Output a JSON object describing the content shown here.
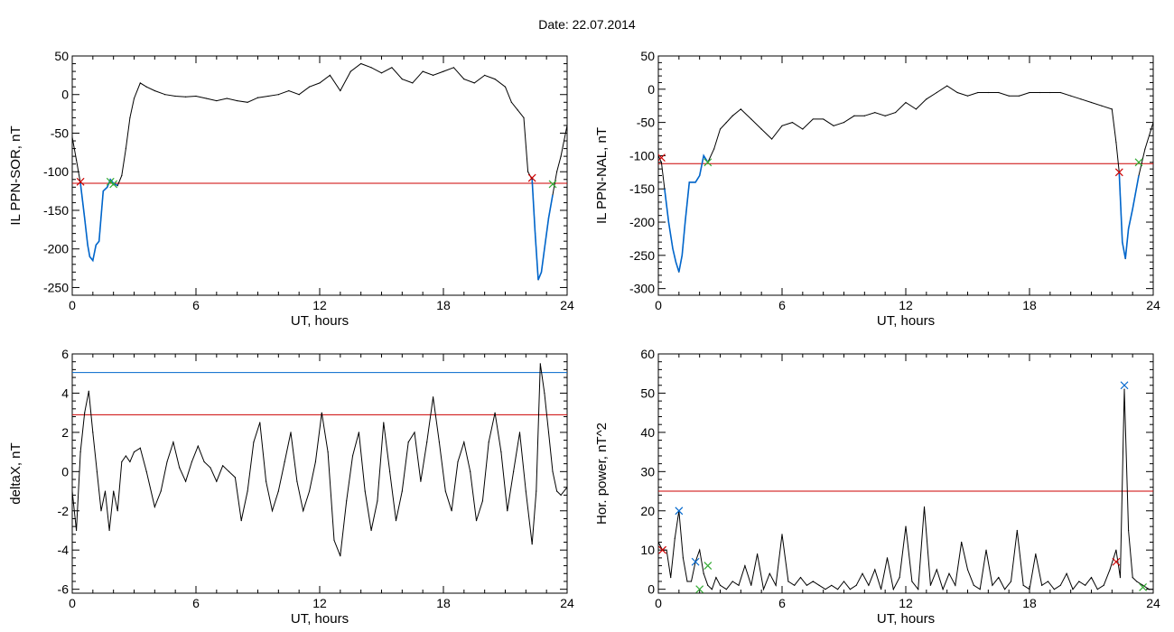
{
  "figure": {
    "title": "Date:  22.07.2014",
    "colors": {
      "data": "#000000",
      "threshold": "#cc0000",
      "highlight": "#0066cc",
      "marker_red": "#cc0000",
      "marker_green": "#33aa33",
      "marker_blue": "#0066cc"
    }
  },
  "chart_data": [
    {
      "type": "line",
      "ylabel": "IL PPN-SOR, nT",
      "xlabel": "UT, hours",
      "xlim": [
        0,
        24
      ],
      "ylim": [
        -260,
        50
      ],
      "xticks": [
        0,
        6,
        12,
        18,
        24
      ],
      "yticks": [
        -250,
        -200,
        -150,
        -100,
        -50,
        0,
        50
      ],
      "series": [
        {
          "x": [
            0,
            0.2,
            0.4,
            0.6,
            0.75,
            0.85,
            1.0,
            1.15,
            1.3,
            1.5,
            1.7,
            1.85,
            2.0,
            2.2,
            2.4,
            2.6,
            2.8,
            3.0,
            3.3,
            3.6,
            4.0,
            4.5,
            5.0,
            5.5,
            6.0,
            6.5,
            7.0,
            7.5,
            8.0,
            8.5,
            9.0,
            9.5,
            10.0,
            10.5,
            11.0,
            11.5,
            12.0,
            12.5,
            13.0,
            13.5,
            14.0,
            14.5,
            15.0,
            15.5,
            16.0,
            16.5,
            17.0,
            17.5,
            18.0,
            18.5,
            19.0,
            19.5,
            20.0,
            20.5,
            21.0,
            21.3,
            21.6,
            21.9,
            22.1,
            22.3,
            22.45,
            22.6,
            22.75,
            22.9,
            23.1,
            23.3,
            23.5,
            23.7,
            24.0
          ],
          "y": [
            -55,
            -85,
            -115,
            -160,
            -195,
            -210,
            -215,
            -195,
            -190,
            -125,
            -120,
            -110,
            -115,
            -118,
            -105,
            -70,
            -30,
            -5,
            15,
            10,
            5,
            0,
            -2,
            -3,
            -2,
            -5,
            -8,
            -5,
            -8,
            -10,
            -4,
            -2,
            0,
            5,
            0,
            10,
            15,
            25,
            5,
            30,
            40,
            35,
            28,
            35,
            20,
            15,
            30,
            25,
            30,
            35,
            20,
            15,
            25,
            20,
            10,
            -10,
            -20,
            -30,
            -100,
            -110,
            -180,
            -240,
            -230,
            -200,
            -160,
            -130,
            -100,
            -80,
            -40
          ]
        }
      ],
      "threshold_red": -115,
      "highlight_segments": [
        [
          0.4,
          2.2
        ],
        [
          22.3,
          23.3
        ]
      ],
      "markers": [
        {
          "x": 0.4,
          "y": -113,
          "color": "red"
        },
        {
          "x": 1.85,
          "y": -113,
          "color": "green"
        },
        {
          "x": 2.0,
          "y": -116,
          "color": "green"
        },
        {
          "x": 22.3,
          "y": -108,
          "color": "red"
        },
        {
          "x": 23.3,
          "y": -116,
          "color": "green"
        }
      ]
    },
    {
      "type": "line",
      "ylabel": "IL PPN-NAL, nT",
      "xlabel": "UT, hours",
      "xlim": [
        0,
        24
      ],
      "ylim": [
        -310,
        50
      ],
      "xticks": [
        0,
        6,
        12,
        18,
        24
      ],
      "yticks": [
        -300,
        -250,
        -200,
        -150,
        -100,
        -50,
        0,
        50
      ],
      "series": [
        {
          "x": [
            0,
            0.15,
            0.3,
            0.5,
            0.7,
            0.85,
            1.0,
            1.15,
            1.3,
            1.5,
            1.8,
            2.0,
            2.2,
            2.4,
            2.7,
            3.0,
            3.3,
            3.6,
            4.0,
            4.5,
            5.0,
            5.5,
            6.0,
            6.5,
            7.0,
            7.5,
            8.0,
            8.5,
            9.0,
            9.5,
            10.0,
            10.5,
            11.0,
            11.5,
            12.0,
            12.5,
            13.0,
            13.5,
            14.0,
            14.5,
            15.0,
            15.5,
            16.0,
            16.5,
            17.0,
            17.5,
            18.0,
            18.5,
            19.0,
            19.5,
            20.0,
            20.5,
            21.0,
            21.5,
            22.0,
            22.2,
            22.35,
            22.5,
            22.65,
            22.8,
            23.0,
            23.3,
            23.6,
            24.0
          ],
          "y": [
            -100,
            -110,
            -150,
            -200,
            -240,
            -260,
            -275,
            -250,
            -200,
            -140,
            -140,
            -130,
            -100,
            -110,
            -90,
            -60,
            -50,
            -40,
            -30,
            -45,
            -60,
            -75,
            -55,
            -50,
            -60,
            -45,
            -45,
            -55,
            -50,
            -40,
            -40,
            -35,
            -40,
            -35,
            -20,
            -30,
            -15,
            -5,
            5,
            -5,
            -10,
            -5,
            -5,
            -5,
            -10,
            -10,
            -5,
            -5,
            -5,
            -5,
            -10,
            -15,
            -20,
            -25,
            -30,
            -80,
            -125,
            -230,
            -255,
            -210,
            -180,
            -130,
            -90,
            -50
          ]
        }
      ],
      "threshold_red": -112,
      "highlight_segments": [
        [
          0.3,
          2.4
        ],
        [
          22.35,
          23.3
        ]
      ],
      "markers": [
        {
          "x": 0.15,
          "y": -103,
          "color": "red"
        },
        {
          "x": 2.4,
          "y": -110,
          "color": "green"
        },
        {
          "x": 22.35,
          "y": -125,
          "color": "red"
        },
        {
          "x": 23.3,
          "y": -110,
          "color": "green"
        }
      ]
    },
    {
      "type": "line",
      "ylabel": "deltaX, nT",
      "xlabel": "UT, hours",
      "xlim": [
        0,
        24
      ],
      "ylim": [
        -6.2,
        6
      ],
      "xticks": [
        0,
        6,
        12,
        18,
        24
      ],
      "yticks": [
        -6,
        -4,
        -2,
        0,
        2,
        4,
        6
      ],
      "series": [
        {
          "x": [
            0,
            0.2,
            0.4,
            0.6,
            0.8,
            1.0,
            1.2,
            1.4,
            1.6,
            1.8,
            2.0,
            2.2,
            2.4,
            2.6,
            2.8,
            3.0,
            3.3,
            3.6,
            4.0,
            4.3,
            4.6,
            4.9,
            5.2,
            5.5,
            5.8,
            6.1,
            6.4,
            6.7,
            7.0,
            7.3,
            7.6,
            7.9,
            8.2,
            8.5,
            8.8,
            9.1,
            9.4,
            9.7,
            10.0,
            10.3,
            10.6,
            10.9,
            11.2,
            11.5,
            11.8,
            12.1,
            12.4,
            12.7,
            13.0,
            13.3,
            13.6,
            13.9,
            14.2,
            14.5,
            14.8,
            15.1,
            15.4,
            15.7,
            16.0,
            16.3,
            16.6,
            16.9,
            17.2,
            17.5,
            17.8,
            18.1,
            18.4,
            18.7,
            19.0,
            19.3,
            19.6,
            19.9,
            20.2,
            20.5,
            20.8,
            21.1,
            21.4,
            21.7,
            22.0,
            22.3,
            22.5,
            22.7,
            22.9,
            23.1,
            23.3,
            23.5,
            23.7,
            24.0
          ],
          "y": [
            -1,
            -3,
            1,
            3,
            4.1,
            2,
            0,
            -2,
            -1,
            -3,
            -1,
            -2,
            0.5,
            0.8,
            0.5,
            1,
            1.2,
            0,
            -1.8,
            -1,
            0.5,
            1.5,
            0.2,
            -0.5,
            0.5,
            1.3,
            0.5,
            0.2,
            -0.5,
            0.3,
            0,
            -0.3,
            -2.5,
            -1,
            1.5,
            2.5,
            -0.5,
            -2,
            -1,
            0.5,
            2,
            -0.5,
            -2,
            -1,
            0.5,
            3,
            1,
            -3.5,
            -4.3,
            -1.5,
            0.8,
            2,
            -1,
            -3,
            -1.5,
            2.5,
            0,
            -2.5,
            -1,
            1.5,
            2,
            -0.5,
            1.5,
            3.8,
            1.5,
            -1,
            -2,
            0.5,
            1.5,
            0,
            -2.5,
            -1.5,
            1.5,
            3,
            1,
            -2,
            0,
            2,
            -1,
            -3.7,
            -1,
            5.5,
            4,
            2,
            0,
            -1,
            -1.2,
            -0.8
          ]
        }
      ],
      "threshold_red": 2.9,
      "threshold_blue": 5.05
    },
    {
      "type": "line",
      "ylabel": "Hor. power, nT^2",
      "xlabel": "UT, hours",
      "xlim": [
        0,
        24
      ],
      "ylim": [
        -1,
        60
      ],
      "xticks": [
        0,
        6,
        12,
        18,
        24
      ],
      "yticks": [
        0,
        10,
        20,
        30,
        40,
        50,
        60
      ],
      "series": [
        {
          "x": [
            0,
            0.2,
            0.4,
            0.6,
            0.8,
            1.0,
            1.2,
            1.4,
            1.6,
            1.8,
            2.0,
            2.2,
            2.4,
            2.6,
            2.8,
            3.0,
            3.3,
            3.6,
            3.9,
            4.2,
            4.5,
            4.8,
            5.1,
            5.4,
            5.7,
            6.0,
            6.3,
            6.6,
            6.9,
            7.2,
            7.5,
            7.8,
            8.1,
            8.4,
            8.7,
            9.0,
            9.3,
            9.6,
            9.9,
            10.2,
            10.5,
            10.8,
            11.1,
            11.4,
            11.7,
            12.0,
            12.3,
            12.6,
            12.9,
            13.2,
            13.5,
            13.8,
            14.1,
            14.4,
            14.7,
            15.0,
            15.3,
            15.6,
            15.9,
            16.2,
            16.5,
            16.8,
            17.1,
            17.4,
            17.7,
            18.0,
            18.3,
            18.6,
            18.9,
            19.2,
            19.5,
            19.8,
            20.1,
            20.4,
            20.7,
            21.0,
            21.3,
            21.6,
            21.9,
            22.2,
            22.4,
            22.6,
            22.8,
            23.0,
            23.2,
            23.5,
            23.8,
            24.0
          ],
          "y": [
            12,
            10,
            10,
            3,
            13,
            20,
            8,
            2,
            2,
            7,
            10,
            4,
            1,
            0,
            3,
            1,
            0,
            2,
            1,
            6,
            1,
            9,
            0,
            4,
            1,
            14,
            2,
            1,
            3,
            1,
            2,
            1,
            0,
            1,
            0,
            2,
            0,
            1,
            4,
            1,
            5,
            0,
            8,
            0,
            3,
            16,
            2,
            0,
            21,
            1,
            5,
            0,
            4,
            1,
            12,
            5,
            1,
            0,
            10,
            1,
            3,
            0,
            2,
            15,
            1,
            0,
            9,
            1,
            2,
            0,
            1,
            4,
            0,
            2,
            1,
            3,
            0,
            1,
            5,
            10,
            3,
            51,
            15,
            3,
            2,
            1,
            0,
            0
          ]
        }
      ],
      "threshold_red": 25,
      "markers": [
        {
          "x": 0.2,
          "y": 10,
          "color": "red"
        },
        {
          "x": 1.0,
          "y": 20,
          "color": "blue"
        },
        {
          "x": 1.8,
          "y": 7,
          "color": "blue"
        },
        {
          "x": 2.0,
          "y": 0,
          "color": "green"
        },
        {
          "x": 2.4,
          "y": 6,
          "color": "green"
        },
        {
          "x": 22.2,
          "y": 7,
          "color": "red"
        },
        {
          "x": 22.6,
          "y": 52,
          "color": "blue"
        },
        {
          "x": 23.5,
          "y": 0.5,
          "color": "green"
        }
      ]
    }
  ]
}
